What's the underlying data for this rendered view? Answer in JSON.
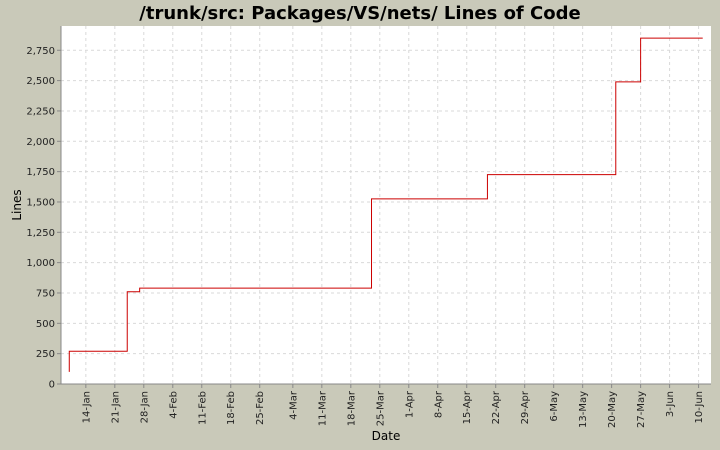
{
  "chart_data": {
    "type": "line",
    "title": "/trunk/src: Packages/VS/nets/ Lines of Code",
    "xlabel": "Date",
    "ylabel": "Lines",
    "step": true,
    "grid": true,
    "colors": {
      "background": "#c9c9b9",
      "plot_background": "#ffffff",
      "line": "#cc0000",
      "grid": "#d9d9d9"
    },
    "ylim": [
      0,
      2950
    ],
    "yticks": [
      0,
      250,
      500,
      750,
      1000,
      1250,
      1500,
      1750,
      2000,
      2250,
      2500,
      2750
    ],
    "ytick_labels": [
      "0",
      "250",
      "500",
      "750",
      "1,000",
      "1,250",
      "1,500",
      "1,750",
      "2,000",
      "2,250",
      "2,500",
      "2,750"
    ],
    "xlim": [
      "01-08",
      "06-13"
    ],
    "xticks": [
      "01-14",
      "01-21",
      "01-28",
      "02-04",
      "02-11",
      "02-18",
      "02-25",
      "03-04",
      "03-11",
      "03-18",
      "03-25",
      "04-01",
      "04-08",
      "04-15",
      "04-22",
      "04-29",
      "05-06",
      "05-13",
      "05-20",
      "05-27",
      "06-03",
      "06-10"
    ],
    "xtick_labels": [
      "14-Jan",
      "21-Jan",
      "28-Jan",
      "4-Feb",
      "11-Feb",
      "18-Feb",
      "25-Feb",
      "4-Mar",
      "11-Mar",
      "18-Mar",
      "25-Mar",
      "1-Apr",
      "8-Apr",
      "15-Apr",
      "22-Apr",
      "29-Apr",
      "6-May",
      "13-May",
      "20-May",
      "27-May",
      "3-Jun",
      "10-Jun"
    ],
    "series": [
      {
        "x": [
          "01-10",
          "01-10",
          "01-24",
          "01-27",
          "03-23",
          "04-20",
          "05-21",
          "05-27",
          "06-11"
        ],
        "y": [
          100,
          270,
          760,
          790,
          1525,
          1725,
          2490,
          2850,
          2850
        ]
      }
    ]
  }
}
